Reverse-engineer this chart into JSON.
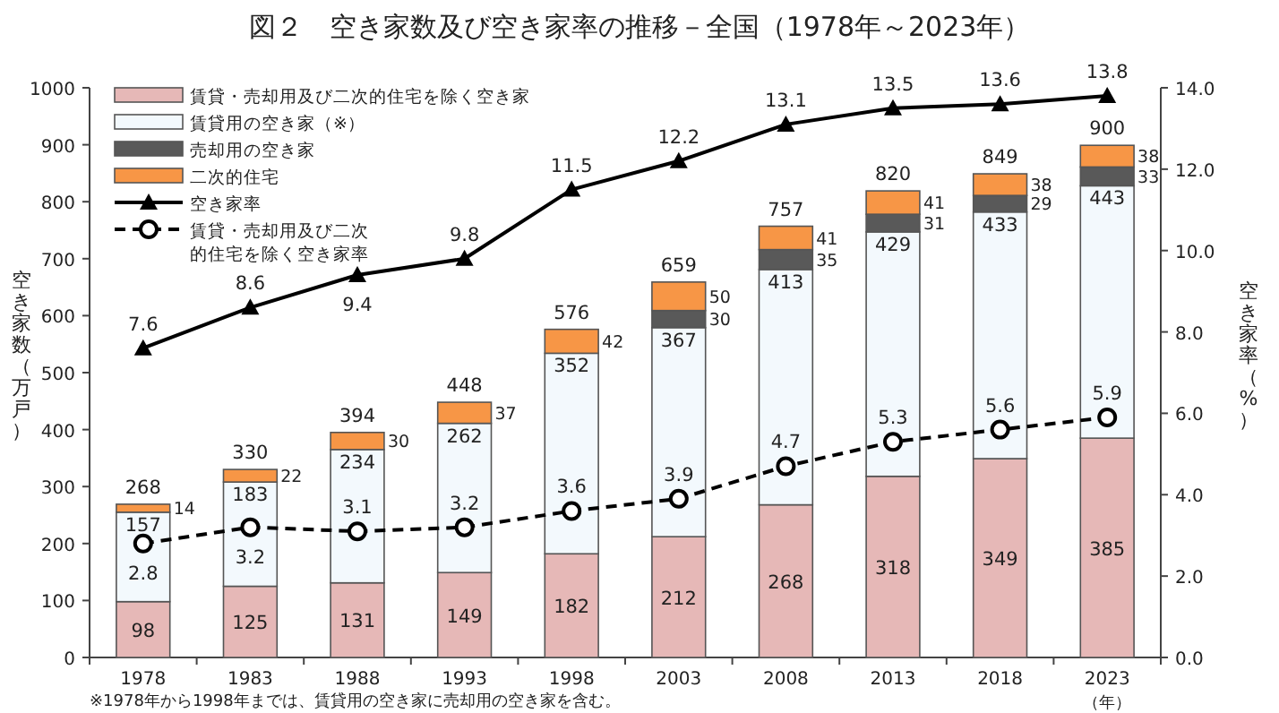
{
  "chart_data": {
    "type": "bar",
    "title": "図２　空き家数及び空き家率の推移－全国（1978年～2023年）",
    "ylabel": "空き家数（万戸）",
    "y2label": "空き家率（%）",
    "xlabel": "（年）",
    "annotations": [
      "※1978年から1998年までは、賃貸用の空き家に売却用の空き家を含む。"
    ],
    "categories": [
      "1978",
      "1983",
      "1988",
      "1993",
      "1998",
      "2003",
      "2008",
      "2013",
      "2018",
      "2023"
    ],
    "stacked": true,
    "data_labels": true,
    "legend": "top left",
    "grid": false,
    "ylim": [
      0,
      1000
    ],
    "yticks": [
      0,
      100,
      200,
      300,
      400,
      500,
      600,
      700,
      800,
      900,
      1000
    ],
    "y2lim": [
      0,
      14
    ],
    "y2ticks": [
      {
        "value": 0,
        "label": "0.0"
      },
      {
        "value": 2,
        "label": "2.0"
      },
      {
        "value": 4,
        "label": "4.0"
      },
      {
        "value": 6,
        "label": "6.0"
      },
      {
        "value": 8,
        "label": "8.0"
      },
      {
        "value": 10,
        "label": "10.0"
      },
      {
        "value": 12,
        "label": "12.0"
      },
      {
        "value": 14,
        "label": "14.0"
      }
    ],
    "totals": [
      "268",
      "330",
      "394",
      "448",
      "576",
      "659",
      "757",
      "820",
      "849",
      "900"
    ],
    "series": [
      {
        "name": "賃貸・売却用及び二次的住宅を除く空き家",
        "color": "#e6b8b7",
        "values": [
          98,
          125,
          131,
          149,
          182,
          212,
          268,
          318,
          349,
          385
        ]
      },
      {
        "name": "賃貸用の空き家（※）",
        "color": "#f3f9fd",
        "values": [
          157,
          183,
          234,
          262,
          352,
          367,
          413,
          429,
          433,
          443
        ]
      },
      {
        "name": "売却用の空き家",
        "color": "#595959",
        "values": [
          null,
          null,
          null,
          null,
          null,
          30,
          35,
          31,
          29,
          33
        ]
      },
      {
        "name": "二次的住宅",
        "color": "#f79646",
        "values": [
          14,
          22,
          30,
          37,
          42,
          50,
          41,
          41,
          38,
          38
        ]
      },
      {
        "name": "空き家率",
        "type": "line",
        "axis": "y2",
        "color": "#000000",
        "marker": "triangle",
        "line_style": "solid",
        "values": [
          7.6,
          8.6,
          9.4,
          9.8,
          11.5,
          12.2,
          13.1,
          13.5,
          13.6,
          13.8
        ]
      },
      {
        "name": "賃貸・売却用及び二次的住宅を除く空き家率",
        "type": "line",
        "axis": "y2",
        "color": "#000000",
        "marker": "circle",
        "line_style": "dashed",
        "values": [
          2.8,
          3.2,
          3.1,
          3.2,
          3.6,
          3.9,
          4.7,
          5.3,
          5.6,
          5.9
        ]
      }
    ]
  }
}
